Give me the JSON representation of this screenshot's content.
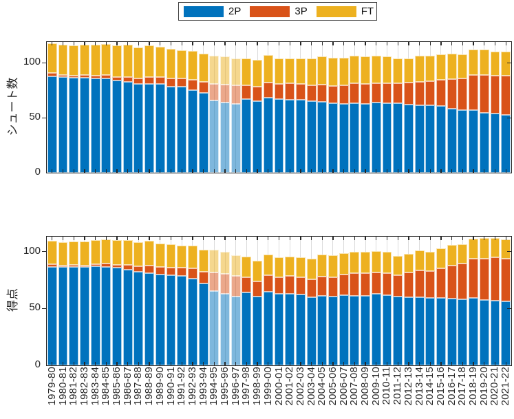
{
  "legend": {
    "items": [
      {
        "label": "2P",
        "color": "#0072BD"
      },
      {
        "label": "3P",
        "color": "#D95319"
      },
      {
        "label": "FT",
        "color": "#EDB120"
      }
    ]
  },
  "colors": {
    "series": [
      "#0072BD",
      "#D95319",
      "#EDB120"
    ],
    "axis": "#262626",
    "grid": "#DBDBDB",
    "background": "#FFFFFF"
  },
  "chart_data": [
    {
      "type": "bar",
      "stacked": true,
      "ylabel": "シュート数",
      "xlabel": "",
      "ylim": [
        0,
        119
      ],
      "yticks": [
        0,
        50,
        100
      ],
      "grid": "x",
      "legend_position": "top-center-outside",
      "x_tick_labels_visible": false,
      "categories": [
        "1979-80",
        "1980-81",
        "1981-82",
        "1982-83",
        "1983-84",
        "1984-85",
        "1985-86",
        "1986-87",
        "1987-88",
        "1988-89",
        "1989-90",
        "1990-91",
        "1991-92",
        "1992-93",
        "1993-94",
        "1994-95",
        "1995-96",
        "1996-97",
        "1997-98",
        "1998-99",
        "1999-00",
        "2000-01",
        "2001-02",
        "2002-03",
        "2003-04",
        "2004-05",
        "2005-06",
        "2006-07",
        "2007-08",
        "2008-09",
        "2009-10",
        "2010-11",
        "2011-12",
        "2012-13",
        "2013-14",
        "2014-15",
        "2015-16",
        "2016-17",
        "2017-18",
        "2018-19",
        "2019-20",
        "2020-21",
        "2021-22"
      ],
      "highlighted_categories": [
        "1994-95",
        "1995-96",
        "1996-97"
      ],
      "highlight_alpha": 0.5,
      "series": [
        {
          "name": "2P",
          "values": [
            87.8,
            87.2,
            86.3,
            86.7,
            86.0,
            85.6,
            83.9,
            82.4,
            80.7,
            80.5,
            80.6,
            78.6,
            78.0,
            75.3,
            72.7,
            65.5,
            64.2,
            62.5,
            66.9,
            65.0,
            68.4,
            66.9,
            66.6,
            66.1,
            64.9,
            64.5,
            63.0,
            62.8,
            63.4,
            62.8,
            63.6,
            63.2,
            63.0,
            62.0,
            61.5,
            61.2,
            60.5,
            58.4,
            57.1,
            57.2,
            54.7,
            53.8,
            52.9
          ]
        },
        {
          "name": "3P",
          "values": [
            2.8,
            2.0,
            2.3,
            2.3,
            2.4,
            3.1,
            3.3,
            4.7,
            5.0,
            6.6,
            6.6,
            7.1,
            7.6,
            9.0,
            9.9,
            15.3,
            16.0,
            16.8,
            12.7,
            13.2,
            13.7,
            13.7,
            14.7,
            14.7,
            14.9,
            15.8,
            16.0,
            16.9,
            18.1,
            18.1,
            18.1,
            18.0,
            18.4,
            20.0,
            21.5,
            22.4,
            24.1,
            27.0,
            29.0,
            32.0,
            34.1,
            34.6,
            35.2
          ]
        },
        {
          "name": "FT",
          "values": [
            27.0,
            27.2,
            27.4,
            27.6,
            28.2,
            28.4,
            28.8,
            29.1,
            28.1,
            28.9,
            27.5,
            26.8,
            25.6,
            26.3,
            25.7,
            25.9,
            25.4,
            24.5,
            24.7,
            24.4,
            24.8,
            23.1,
            22.6,
            23.4,
            23.9,
            25.7,
            25.8,
            25.1,
            24.9,
            24.7,
            24.5,
            24.4,
            22.5,
            22.2,
            23.6,
            22.8,
            23.4,
            23.1,
            21.7,
            23.1,
            23.1,
            21.8,
            21.9
          ]
        }
      ]
    },
    {
      "type": "bar",
      "stacked": true,
      "ylabel": "得点",
      "xlabel": "",
      "ylim": [
        0,
        113
      ],
      "yticks": [
        0,
        50,
        100
      ],
      "grid": "x",
      "x_tick_labels_visible": true,
      "categories": [
        "1979-80",
        "1980-81",
        "1981-82",
        "1982-83",
        "1983-84",
        "1984-85",
        "1985-86",
        "1986-87",
        "1987-88",
        "1988-89",
        "1989-90",
        "1990-91",
        "1991-92",
        "1992-93",
        "1993-94",
        "1994-95",
        "1995-96",
        "1996-97",
        "1997-98",
        "1998-99",
        "1999-00",
        "2000-01",
        "2001-02",
        "2002-03",
        "2003-04",
        "2004-05",
        "2005-06",
        "2006-07",
        "2007-08",
        "2008-09",
        "2009-10",
        "2010-11",
        "2011-12",
        "2012-13",
        "2013-14",
        "2014-15",
        "2015-16",
        "2016-17",
        "2017-18",
        "2018-19",
        "2019-20",
        "2020-21",
        "2021-22"
      ],
      "highlighted_categories": [
        "1994-95",
        "1995-96",
        "1996-97"
      ],
      "highlight_alpha": 0.5,
      "series": [
        {
          "name": "2P",
          "values": [
            86.5,
            86.4,
            86.3,
            86.2,
            86.9,
            86.6,
            85.6,
            83.8,
            82.2,
            81.1,
            79.6,
            79.0,
            78.3,
            76.4,
            72.1,
            65.2,
            62.9,
            60.5,
            64.2,
            60.3,
            64.5,
            63.1,
            63.0,
            62.2,
            60.0,
            61.0,
            60.3,
            61.4,
            61.3,
            61.3,
            62.6,
            61.5,
            60.2,
            59.8,
            60.1,
            59.5,
            59.5,
            58.7,
            58.2,
            59.3,
            57.3,
            57.0,
            56.5
          ]
        },
        {
          "name": "3P",
          "values": [
            2.4,
            1.5,
            1.8,
            1.5,
            1.8,
            2.7,
            2.7,
            4.2,
            4.8,
            6.3,
            6.6,
            6.9,
            7.5,
            9.0,
            9.9,
            16.5,
            17.7,
            18.3,
            13.2,
            13.5,
            14.4,
            14.4,
            15.6,
            15.3,
            15.6,
            16.8,
            17.1,
            18.3,
            19.8,
            19.8,
            19.2,
            19.5,
            19.2,
            21.6,
            23.1,
            23.4,
            25.5,
            29.1,
            31.5,
            34.2,
            36.6,
            38.1,
            37.2
          ]
        },
        {
          "name": "FT",
          "values": [
            20.4,
            20.2,
            20.5,
            20.8,
            21.4,
            21.5,
            21.9,
            21.9,
            21.2,
            21.8,
            20.8,
            20.4,
            19.5,
            19.9,
            19.5,
            19.7,
            18.9,
            18.1,
            18.2,
            17.8,
            18.6,
            17.3,
            16.9,
            17.6,
            17.8,
            19.4,
            19.6,
            19.0,
            18.8,
            18.9,
            18.6,
            18.6,
            16.9,
            16.7,
            17.8,
            17.1,
            17.7,
            17.8,
            16.6,
            17.7,
            17.9,
            17.0,
            16.9
          ]
        }
      ]
    }
  ]
}
